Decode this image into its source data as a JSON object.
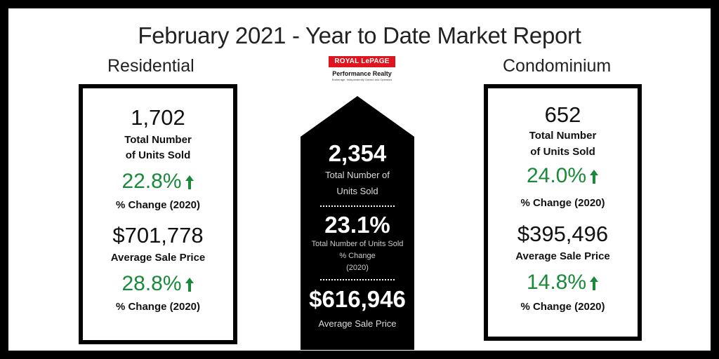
{
  "title": "February 2021 - Year to Date Market Report",
  "residential": {
    "heading": "Residential",
    "units": "1,702",
    "units_label_line1": "Total Number",
    "units_label_line2": "of Units Sold",
    "units_change": "22.8%",
    "units_change_label": "% Change (2020)",
    "avg_price": "$701,778",
    "avg_price_label": "Average Sale Price",
    "price_change": "28.8%",
    "price_change_label": "% Change (2020)"
  },
  "condominium": {
    "heading": "Condominium",
    "units": "652",
    "units_label_line1": "Total Number",
    "units_label_line2": "of Units Sold",
    "units_change": "24.0%",
    "units_change_label": "% Change (2020)",
    "avg_price": "$395,496",
    "avg_price_label": "Average Sale Price",
    "price_change": "14.8%",
    "price_change_label": "% Change (2020)"
  },
  "total": {
    "units": "2,354",
    "units_label_line1": "Total Number of",
    "units_label_line2": "Units Sold",
    "units_change": "23.1%",
    "units_change_label_line1": "Total Number of Units Sold",
    "units_change_label_line2": "% Change",
    "units_change_label_line3": "(2020)",
    "avg_price": "$616,946",
    "avg_price_label": "Average Sale Price"
  },
  "logo": {
    "brand": "ROYAL LePAGE",
    "office": "Performance Realty",
    "tagline": "Brokerage, Independently Owned and Operated"
  },
  "colors": {
    "increase": "#1a8a3a",
    "brand_red": "#e0141e"
  }
}
